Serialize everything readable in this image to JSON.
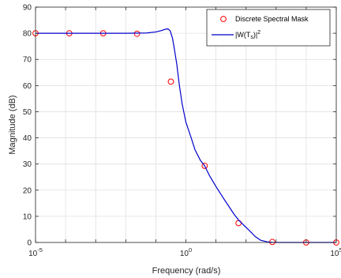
{
  "chart_data": {
    "type": "line",
    "xlabel": "Frequency (rad/s)",
    "ylabel": "Magnitude (dB)",
    "xscale": "log",
    "xlim": [
      1e-05,
      100000
    ],
    "ylim": [
      0,
      90
    ],
    "xticks": [
      1e-05,
      1,
      100000
    ],
    "xtick_bases": [
      "10",
      "10",
      "10"
    ],
    "xtick_exps": [
      "-5",
      "0",
      "5"
    ],
    "yticks": [
      0,
      10,
      20,
      30,
      40,
      50,
      60,
      70,
      80,
      90
    ],
    "grid": true,
    "legend_position": "top-right",
    "series": [
      {
        "name": "Discrete Spectral Mask",
        "style": "markers",
        "marker": "circle",
        "color": "#ff0000",
        "x": [
          1e-05,
          0.000133,
          0.00178,
          0.0237,
          0.316,
          4.22,
          56.2,
          750,
          10000,
          100000
        ],
        "y": [
          80,
          80,
          80,
          79.8,
          61.5,
          29.3,
          7.4,
          0.2,
          0,
          0
        ]
      },
      {
        "name_parts": [
          "|W(T",
          "s",
          ")|",
          "2"
        ],
        "style": "line",
        "color": "#0000cc",
        "x": [
          1e-05,
          0.0001,
          0.001,
          0.01,
          0.05,
          0.1,
          0.15,
          0.2,
          0.25,
          0.3,
          0.36,
          0.42,
          0.5,
          0.6,
          0.75,
          1.0,
          1.5,
          2.0,
          3.0,
          4.22,
          6.0,
          10.0,
          20.0,
          40.0,
          56.2,
          100,
          150,
          200,
          300,
          500,
          750,
          1000,
          10000,
          100000
        ],
        "y": [
          80,
          80,
          80,
          80,
          80.1,
          80.5,
          81.0,
          81.5,
          81.7,
          81.0,
          78.0,
          73.5,
          68.0,
          60.5,
          53.0,
          46.0,
          40.0,
          35.5,
          31.5,
          29.3,
          25.7,
          21.4,
          16.0,
          10.8,
          8.6,
          5.8,
          3.8,
          2.3,
          0.9,
          0.25,
          0.05,
          0,
          0,
          0
        ]
      }
    ]
  }
}
